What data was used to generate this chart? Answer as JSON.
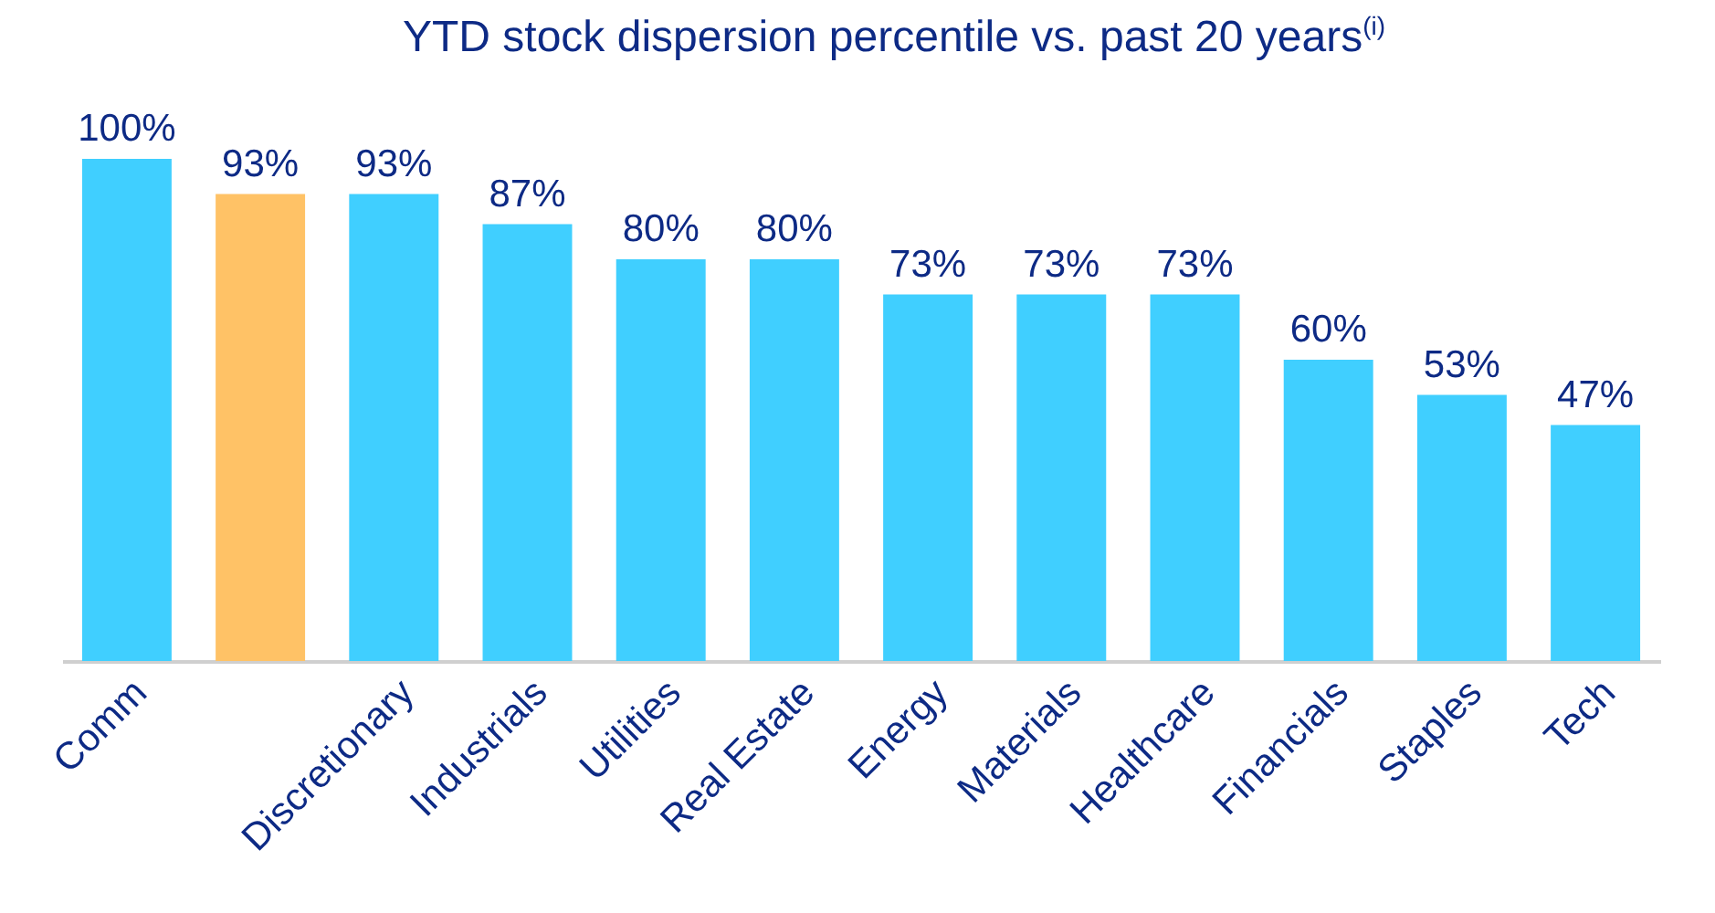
{
  "chart_data": {
    "type": "bar",
    "title": "YTD stock dispersion percentile vs. past 20 years$^{(i)}$",
    "categories": [
      "Comm",
      null,
      "Discretionary",
      "Industrials",
      "Utilities",
      "Real Estate",
      "Energy",
      "Materials",
      "Healthcare",
      "Financials",
      "Staples",
      "Tech"
    ],
    "values": [
      100,
      93,
      93,
      87,
      80,
      80,
      73,
      73,
      73,
      60,
      53,
      47
    ],
    "value_labels": [
      "100%",
      "93%",
      "93%",
      "87%",
      "80%",
      "80%",
      "73%",
      "73%",
      "73%",
      "60%",
      "53%",
      "47%"
    ],
    "colors": [
      "#40cfff",
      "#ffc266",
      "#40cfff",
      "#40cfff",
      "#40cfff",
      "#40cfff",
      "#40cfff",
      "#40cfff",
      "#40cfff",
      "#40cfff",
      "#40cfff",
      "#40cfff"
    ]
  }
}
